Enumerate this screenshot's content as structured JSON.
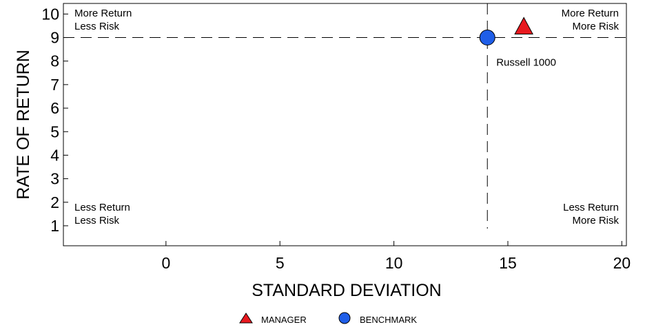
{
  "chart_data": {
    "type": "scatter",
    "xlabel": "STANDARD DEVIATION",
    "ylabel": "RATE OF RETURN",
    "xlim": [
      -4.5,
      20.2
    ],
    "ylim": [
      0.15,
      10.45
    ],
    "xticks": [
      0,
      5,
      10,
      15,
      20
    ],
    "yticks": [
      1,
      2,
      3,
      4,
      5,
      6,
      7,
      8,
      9,
      10
    ],
    "grid": false,
    "reference_lines": {
      "x": 14.1,
      "y": 9.0,
      "style": "dashed"
    },
    "quadrant_labels": {
      "top_left": [
        "More Return",
        "Less Risk"
      ],
      "top_right": [
        "More Return",
        "More Risk"
      ],
      "bottom_left": [
        "Less Return",
        "Less Risk"
      ],
      "bottom_right": [
        "Less Return",
        "More Risk"
      ]
    },
    "series": [
      {
        "name": "MANAGER",
        "marker": "triangle",
        "color": "#e8191f",
        "points": [
          {
            "x": 15.7,
            "y": 9.5
          }
        ]
      },
      {
        "name": "BENCHMARK",
        "marker": "circle",
        "color": "#1f5ee8",
        "points": [
          {
            "x": 14.1,
            "y": 9.0,
            "label": "Russell 1000"
          }
        ]
      }
    ],
    "legend": {
      "position": "bottom-center",
      "entries": [
        "MANAGER",
        "BENCHMARK"
      ]
    }
  }
}
